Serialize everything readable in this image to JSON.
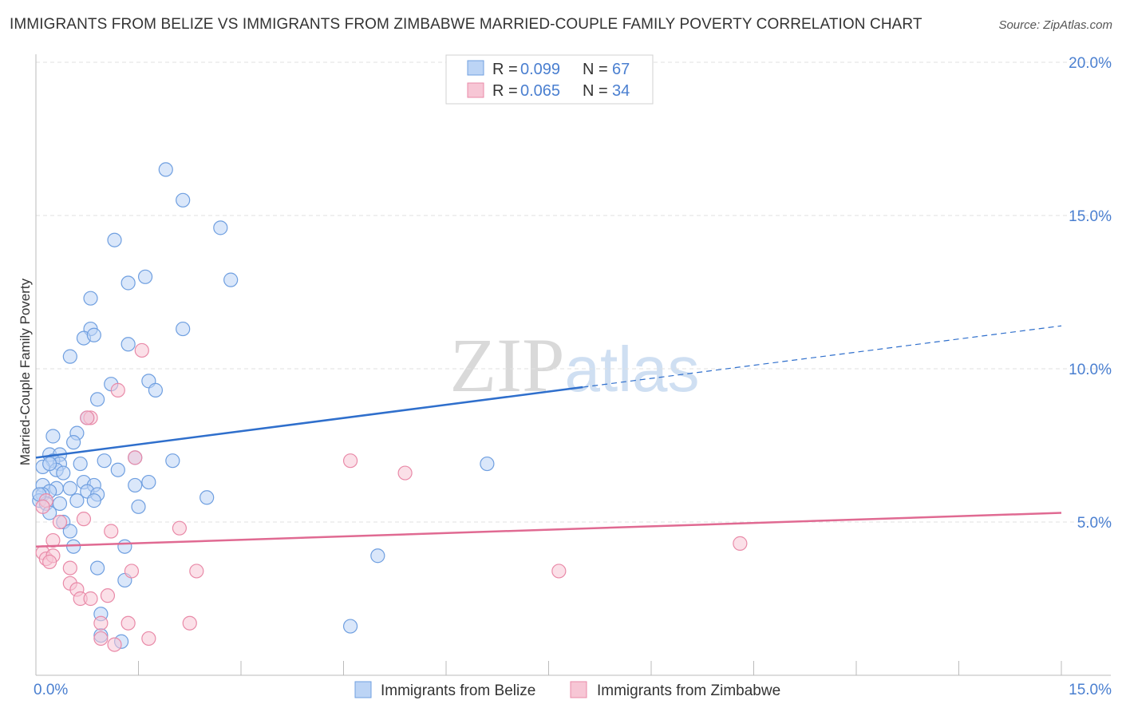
{
  "chart_data": {
    "type": "scatter",
    "title": "IMMIGRANTS FROM BELIZE VS IMMIGRANTS FROM ZIMBABWE MARRIED-COUPLE FAMILY POVERTY CORRELATION CHART",
    "source": "Source: ZipAtlas.com",
    "ylabel": "Married-Couple Family Poverty",
    "xlim": [
      0,
      15
    ],
    "ylim": [
      0,
      20
    ],
    "x_tick_labels": [
      "0.0%",
      "15.0%"
    ],
    "y_ticks": [
      5,
      10,
      15,
      20
    ],
    "y_tick_labels": [
      "5.0%",
      "10.0%",
      "15.0%",
      "20.0%"
    ],
    "watermark": "ZIPatlas",
    "series": [
      {
        "name": "Immigrants from Belize",
        "color": "#6f9fe0",
        "fill": "#bcd4f5",
        "r_label": "R =",
        "r_value": "0.099",
        "n_label": "N =",
        "n_value": "67",
        "trend": {
          "x0": 0,
          "y0": 7.1,
          "x1": 8.0,
          "y1": 9.4,
          "x_dash_end": 15,
          "y_dash_end": 11.4
        },
        "points": [
          [
            1.9,
            16.5
          ],
          [
            2.15,
            15.5
          ],
          [
            2.7,
            14.6
          ],
          [
            1.15,
            14.2
          ],
          [
            1.6,
            13.0
          ],
          [
            1.35,
            12.8
          ],
          [
            2.85,
            12.9
          ],
          [
            0.8,
            12.3
          ],
          [
            0.8,
            11.3
          ],
          [
            2.15,
            11.3
          ],
          [
            0.7,
            11.0
          ],
          [
            0.85,
            11.1
          ],
          [
            1.35,
            10.8
          ],
          [
            0.5,
            10.4
          ],
          [
            1.65,
            9.6
          ],
          [
            1.1,
            9.5
          ],
          [
            1.75,
            9.3
          ],
          [
            0.9,
            9.0
          ],
          [
            0.75,
            8.4
          ],
          [
            0.6,
            7.9
          ],
          [
            0.25,
            7.8
          ],
          [
            0.55,
            7.6
          ],
          [
            0.2,
            7.2
          ],
          [
            0.35,
            7.2
          ],
          [
            0.25,
            7.0
          ],
          [
            0.35,
            6.9
          ],
          [
            1.45,
            7.1
          ],
          [
            2.0,
            7.0
          ],
          [
            1.0,
            7.0
          ],
          [
            0.65,
            6.9
          ],
          [
            0.3,
            6.7
          ],
          [
            0.1,
            6.8
          ],
          [
            0.4,
            6.6
          ],
          [
            1.2,
            6.7
          ],
          [
            6.6,
            6.9
          ],
          [
            0.1,
            6.2
          ],
          [
            0.3,
            6.1
          ],
          [
            0.7,
            6.3
          ],
          [
            0.5,
            6.1
          ],
          [
            0.85,
            6.2
          ],
          [
            0.2,
            6.0
          ],
          [
            0.1,
            5.9
          ],
          [
            0.75,
            6.0
          ],
          [
            1.45,
            6.2
          ],
          [
            1.65,
            6.3
          ],
          [
            0.9,
            5.9
          ],
          [
            2.5,
            5.8
          ],
          [
            0.05,
            5.7
          ],
          [
            0.15,
            5.6
          ],
          [
            0.6,
            5.7
          ],
          [
            0.85,
            5.7
          ],
          [
            0.35,
            5.6
          ],
          [
            1.5,
            5.5
          ],
          [
            0.2,
            5.3
          ],
          [
            0.4,
            5.0
          ],
          [
            0.5,
            4.7
          ],
          [
            0.55,
            4.2
          ],
          [
            1.3,
            4.2
          ],
          [
            5.0,
            3.9
          ],
          [
            0.9,
            3.5
          ],
          [
            1.3,
            3.1
          ],
          [
            0.95,
            2.0
          ],
          [
            0.95,
            1.3
          ],
          [
            1.25,
            1.1
          ],
          [
            4.6,
            1.6
          ],
          [
            0.05,
            5.9
          ],
          [
            0.2,
            6.9
          ]
        ]
      },
      {
        "name": "Immigrants from Zimbabwe",
        "color": "#e98aa8",
        "fill": "#f7c6d5",
        "r_label": "R =",
        "r_value": "0.065",
        "n_label": "N =",
        "n_value": "34",
        "trend": {
          "x0": 0,
          "y0": 4.2,
          "x1": 15,
          "y1": 5.3
        },
        "points": [
          [
            1.55,
            10.6
          ],
          [
            1.2,
            9.3
          ],
          [
            0.8,
            8.4
          ],
          [
            0.75,
            8.4
          ],
          [
            1.45,
            7.1
          ],
          [
            4.6,
            7.0
          ],
          [
            5.4,
            6.6
          ],
          [
            0.15,
            5.7
          ],
          [
            0.1,
            5.5
          ],
          [
            0.35,
            5.0
          ],
          [
            0.7,
            5.1
          ],
          [
            2.1,
            4.8
          ],
          [
            1.1,
            4.7
          ],
          [
            0.25,
            4.4
          ],
          [
            10.3,
            4.3
          ],
          [
            0.1,
            4.0
          ],
          [
            0.15,
            3.8
          ],
          [
            0.25,
            3.9
          ],
          [
            0.2,
            3.7
          ],
          [
            0.5,
            3.5
          ],
          [
            1.4,
            3.4
          ],
          [
            2.35,
            3.4
          ],
          [
            7.65,
            3.4
          ],
          [
            0.5,
            3.0
          ],
          [
            0.6,
            2.8
          ],
          [
            1.05,
            2.6
          ],
          [
            0.65,
            2.5
          ],
          [
            0.8,
            2.5
          ],
          [
            0.95,
            1.7
          ],
          [
            1.35,
            1.7
          ],
          [
            2.25,
            1.7
          ],
          [
            1.65,
            1.2
          ],
          [
            0.95,
            1.2
          ],
          [
            1.15,
            1.0
          ]
        ]
      }
    ]
  }
}
